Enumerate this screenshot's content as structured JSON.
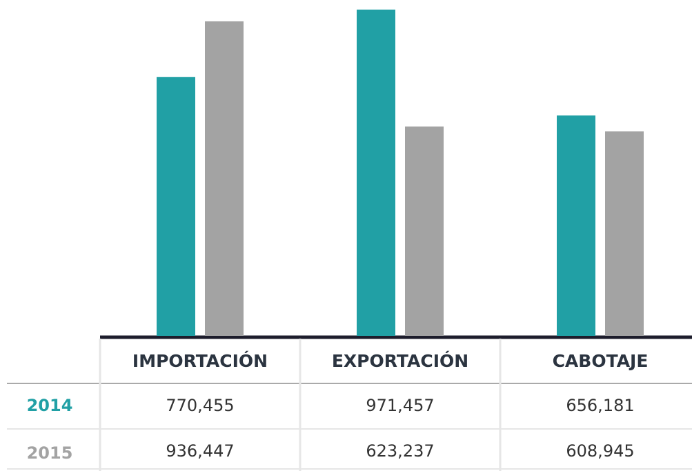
{
  "chart_data": {
    "type": "bar",
    "categories": [
      "IMPORTACIÓN",
      "EXPORTACIÓN",
      "CABOTAJE"
    ],
    "series": [
      {
        "name": "2014",
        "color": "#21a0a5",
        "values": [
          770455,
          971457,
          656181
        ],
        "value_labels": [
          "770,455",
          "971,457",
          "656,181"
        ]
      },
      {
        "name": "2015",
        "color": "#a3a3a3",
        "values": [
          936447,
          623237,
          608945
        ],
        "value_labels": [
          "936,447",
          "623,237",
          "608,945"
        ]
      }
    ],
    "ylim": [
      0,
      1000000
    ]
  }
}
